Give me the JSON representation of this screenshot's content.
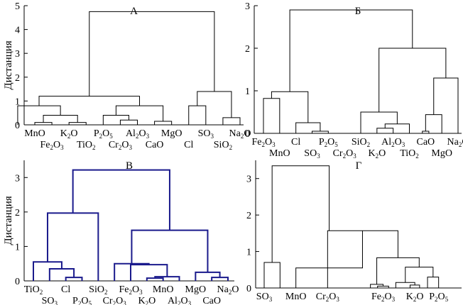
{
  "chart_data": [
    {
      "type": "dendrogram",
      "title": "А",
      "ylabel": "Дистанция",
      "ylim": [
        0,
        5
      ],
      "yticks": [
        "0",
        "1",
        "2",
        "3",
        "4",
        "5"
      ],
      "link_color": "#000000",
      "leaves": [
        {
          "label": [
            "MnO"
          ],
          "row": 0
        },
        {
          "label": [
            "Fe",
            "2",
            "O",
            "3"
          ],
          "row": 1
        },
        {
          "label": [
            "K",
            "2",
            "O"
          ],
          "row": 0
        },
        {
          "label": [
            "TiO",
            "2"
          ],
          "row": 1
        },
        {
          "label": [
            "P",
            "2",
            "O",
            "5"
          ],
          "row": 0
        },
        {
          "label": [
            "Cr",
            "2",
            "O",
            "3"
          ],
          "row": 1
        },
        {
          "label": [
            "Al",
            "2",
            "O",
            "3"
          ],
          "row": 0
        },
        {
          "label": [
            "CaO"
          ],
          "row": 1
        },
        {
          "label": [
            "MgO"
          ],
          "row": 0
        },
        {
          "label": [
            "Cl"
          ],
          "row": 1
        },
        {
          "label": [
            "SO",
            "3"
          ],
          "row": 0
        },
        {
          "label": [
            "SiO",
            "2"
          ],
          "row": 1
        },
        {
          "label": [
            "Na",
            "2",
            "O"
          ],
          "row": 0
        }
      ],
      "links": [
        {
          "a": [
            1,
            0
          ],
          "b": [
            2,
            0
          ],
          "h": 0.1
        },
        {
          "a": [
            3,
            0
          ],
          "b": [
            4,
            0
          ],
          "h": 0.1
        },
        {
          "a": [
            6,
            0
          ],
          "b": [
            7,
            0
          ],
          "h": 0.2
        },
        {
          "a": [
            8,
            0
          ],
          "b": [
            9,
            0
          ],
          "h": 0.15
        },
        {
          "a": [
            1.5,
            0.1
          ],
          "b": [
            3.5,
            0.1
          ],
          "h": 0.4
        },
        {
          "a": [
            5,
            0
          ],
          "b": [
            6.5,
            0.2
          ],
          "h": 0.4
        },
        {
          "a": [
            0,
            0
          ],
          "b": [
            2.5,
            0.4
          ],
          "h": 0.8
        },
        {
          "a": [
            5.75,
            0.4
          ],
          "b": [
            8.5,
            0.15
          ],
          "h": 0.8
        },
        {
          "a": [
            10,
            0
          ],
          "b": [
            11,
            0
          ],
          "h": 0.8
        },
        {
          "a": [
            1.25,
            0.8
          ],
          "b": [
            7.125,
            0.8
          ],
          "h": 1.2
        },
        {
          "a": [
            12,
            0
          ],
          "b": [
            13,
            0
          ],
          "h": 0.3
        },
        {
          "a": [
            10.5,
            0.8
          ],
          "b": [
            12.5,
            0.3
          ],
          "h": 1.4
        },
        {
          "a": [
            4.1875,
            1.2
          ],
          "b": [
            11.5,
            1.4
          ],
          "h": 4.75
        }
      ]
    },
    {
      "type": "dendrogram",
      "title": "Б",
      "ylabel": "",
      "ylim": [
        0,
        3
      ],
      "yticks": [
        "0",
        "1",
        "2",
        "3"
      ],
      "link_color": "#000000",
      "leaves": [
        {
          "label": [
            "Fe",
            "2",
            "O",
            "3"
          ],
          "row": 0
        },
        {
          "label": [
            "MnO"
          ],
          "row": 1
        },
        {
          "label": [
            "Cl"
          ],
          "row": 0
        },
        {
          "label": [
            "SO",
            "3"
          ],
          "row": 1
        },
        {
          "label": [
            "P",
            "2",
            "O",
            "5"
          ],
          "row": 0
        },
        {
          "label": [
            "Cr",
            "2",
            "O",
            "3"
          ],
          "row": 1
        },
        {
          "label": [
            "SiO",
            "2"
          ],
          "row": 0
        },
        {
          "label": [
            "K",
            "2",
            "O"
          ],
          "row": 1
        },
        {
          "label": [
            "Al",
            "2",
            "O",
            "3"
          ],
          "row": 0
        },
        {
          "label": [
            "TiO",
            "2"
          ],
          "row": 1
        },
        {
          "label": [
            "CaO"
          ],
          "row": 0
        },
        {
          "label": [
            "MgO"
          ],
          "row": 1
        },
        {
          "label": [
            "Na",
            "2",
            "O"
          ],
          "row": 0
        }
      ],
      "links": [
        {
          "a": [
            1,
            0
          ],
          "b": [
            2,
            0
          ],
          "h": 0.82
        },
        {
          "a": [
            4,
            0
          ],
          "b": [
            5,
            0
          ],
          "h": 0.05
        },
        {
          "a": [
            3,
            0
          ],
          "b": [
            4.5,
            0.05
          ],
          "h": 0.25
        },
        {
          "a": [
            1.5,
            0.82
          ],
          "b": [
            3.75,
            0.25
          ],
          "h": 0.98
        },
        {
          "a": [
            8,
            0
          ],
          "b": [
            9,
            0
          ],
          "h": 0.12
        },
        {
          "a": [
            8.5,
            0.12
          ],
          "b": [
            10,
            0
          ],
          "h": 0.22
        },
        {
          "a": [
            7,
            0
          ],
          "b": [
            9.25,
            0.22
          ],
          "h": 0.5
        },
        {
          "a": [
            10.8,
            0
          ],
          "b": [
            11.2,
            0
          ],
          "h": 0.05
        },
        {
          "a": [
            11,
            0.05
          ],
          "b": [
            12,
            0
          ],
          "h": 0.44
        },
        {
          "a": [
            11.5,
            0.44
          ],
          "b": [
            13,
            0
          ],
          "h": 1.3
        },
        {
          "a": [
            8.125,
            0.5
          ],
          "b": [
            12.25,
            1.3
          ],
          "h": 2.0
        },
        {
          "a": [
            2.625,
            0.98
          ],
          "b": [
            10.1875,
            2.0
          ],
          "h": 2.9
        }
      ]
    },
    {
      "type": "dendrogram",
      "title": "В",
      "ylabel": "Дистанция",
      "ylim": [
        0,
        3.5
      ],
      "yticks": [
        "0",
        "1",
        "2",
        "3"
      ],
      "link_color": "#1a1a8c",
      "leaves": [
        {
          "label": [
            "TiO",
            "2"
          ],
          "row": 0
        },
        {
          "label": [
            "SO",
            "3"
          ],
          "row": 1
        },
        {
          "label": [
            "Cl"
          ],
          "row": 0
        },
        {
          "label": [
            "P",
            "2",
            "O",
            "5"
          ],
          "row": 1
        },
        {
          "label": [
            "SiO",
            "2"
          ],
          "row": 0
        },
        {
          "label": [
            "Cr",
            "2",
            "O",
            "3"
          ],
          "row": 1
        },
        {
          "label": [
            "Fe",
            "2",
            "O",
            "3"
          ],
          "row": 0
        },
        {
          "label": [
            "K",
            "2",
            "O"
          ],
          "row": 1
        },
        {
          "label": [
            "MnO"
          ],
          "row": 0
        },
        {
          "label": [
            "Al",
            "2",
            "O",
            "3"
          ],
          "row": 1
        },
        {
          "label": [
            "MgO"
          ],
          "row": 0
        },
        {
          "label": [
            "CaO"
          ],
          "row": 1
        },
        {
          "label": [
            "Na",
            "2",
            "O"
          ],
          "row": 0
        }
      ],
      "links": [
        {
          "a": [
            3,
            0
          ],
          "b": [
            4,
            0
          ],
          "h": 0.1
        },
        {
          "a": [
            2,
            0
          ],
          "b": [
            3.5,
            0.1
          ],
          "h": 0.35
        },
        {
          "a": [
            1,
            0
          ],
          "b": [
            2.75,
            0.35
          ],
          "h": 0.55
        },
        {
          "a": [
            1.875,
            0.55
          ],
          "b": [
            5,
            0
          ],
          "h": 1.97
        },
        {
          "a": [
            8,
            0
          ],
          "b": [
            9,
            0
          ],
          "h": 0.08
        },
        {
          "a": [
            8.5,
            0.08
          ],
          "b": [
            10,
            0
          ],
          "h": 0.12
        },
        {
          "a": [
            7,
            0
          ],
          "b": [
            9.25,
            0.12
          ],
          "h": 0.47
        },
        {
          "a": [
            6,
            0
          ],
          "b": [
            8.125,
            0.47
          ],
          "h": 0.5
        },
        {
          "a": [
            12,
            0
          ],
          "b": [
            13,
            0
          ],
          "h": 0.1
        },
        {
          "a": [
            11,
            0
          ],
          "b": [
            12.5,
            0.1
          ],
          "h": 0.25
        },
        {
          "a": [
            7.0625,
            0.5
          ],
          "b": [
            11.75,
            0.25
          ],
          "h": 1.47
        },
        {
          "a": [
            3.4375,
            1.97
          ],
          "b": [
            9.40625,
            1.47
          ],
          "h": 3.22
        }
      ]
    },
    {
      "type": "dendrogram",
      "title": "Г",
      "ylabel": "",
      "ylim": [
        0,
        3.5
      ],
      "yticks": [
        "0",
        "1",
        "2",
        "3"
      ],
      "link_color": "#000000",
      "leaves": [
        {
          "label": [
            "SO",
            "3"
          ],
          "row": 0
        },
        {
          "label": [
            "MnO"
          ],
          "row": 0
        },
        {
          "label": [
            "Cr",
            "2",
            "O",
            "3"
          ],
          "row": 0
        },
        {
          "label": [
            "Fe",
            "2",
            "O",
            "3"
          ],
          "row": 0
        },
        {
          "label": [
            "K",
            "2",
            "O"
          ],
          "row": 0
        },
        {
          "label": [
            "P",
            "2",
            "O",
            "5"
          ],
          "row": 0
        }
      ],
      "links": [
        {
          "a": [
            8.15,
            0
          ],
          "b": [
            8.85,
            0
          ],
          "h": 0.05
        },
        {
          "a": [
            10.2,
            0
          ],
          "b": [
            10.8,
            0
          ],
          "h": 0.08
        },
        {
          "a": [
            7.7,
            0
          ],
          "b": [
            8.5,
            0.05
          ],
          "h": 0.1
        },
        {
          "a": [
            9.3,
            0
          ],
          "b": [
            10.5,
            0.08
          ],
          "h": 0.15
        },
        {
          "a": [
            11.3,
            0
          ],
          "b": [
            12,
            0
          ],
          "h": 0.3
        },
        {
          "a": [
            9.9,
            0.15
          ],
          "b": [
            11.65,
            0.3
          ],
          "h": 0.57
        },
        {
          "a": [
            8.1,
            0.1
          ],
          "b": [
            10.775,
            0.57
          ],
          "h": 0.83
        },
        {
          "a": [
            5,
            0
          ],
          "b": [
            9.4375,
            0.83
          ],
          "h": 1.57
        },
        {
          "a": [
            3,
            0
          ],
          "b": [
            7.2,
            1.57
          ],
          "h": 0.55
        },
        {
          "a": [
            1,
            0
          ],
          "b": [
            2,
            0
          ],
          "h": 0.7
        },
        {
          "a": [
            1.5,
            0.7
          ],
          "b": [
            5.1,
            1.57
          ],
          "h": 3.35
        }
      ],
      "leaf_positions": [
        1,
        3,
        5,
        8.5,
        10.5,
        12
      ]
    }
  ]
}
